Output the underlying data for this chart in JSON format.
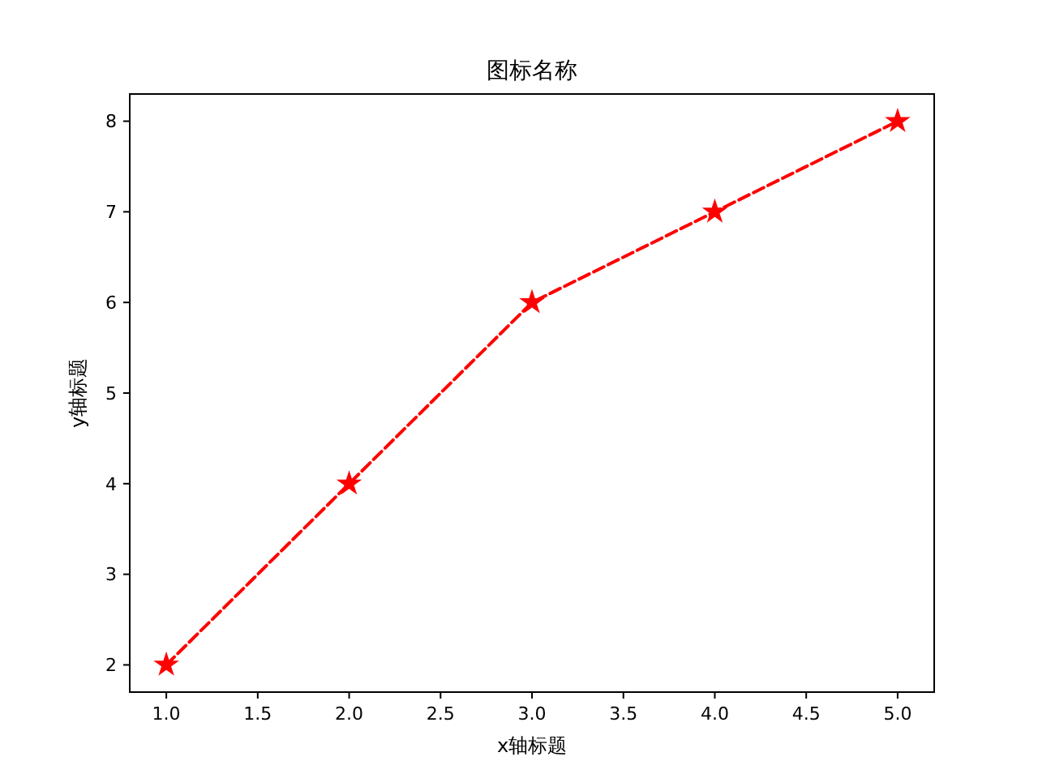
{
  "chart_data": {
    "type": "line",
    "title": "图标名称",
    "xlabel": "x轴标题",
    "ylabel": "y轴标题",
    "x": [
      1,
      2,
      3,
      4,
      5
    ],
    "series": [
      {
        "color": "#ff0000",
        "values": [
          2,
          4,
          6,
          7,
          8
        ]
      }
    ],
    "xlim": [
      0.8,
      5.2
    ],
    "xticks": [
      {
        "value": 1,
        "label": "1.0"
      },
      {
        "value": 1.5,
        "label": "1.5"
      },
      {
        "value": 2,
        "label": "2.0"
      },
      {
        "value": 2.5,
        "label": "2.5"
      },
      {
        "value": 3,
        "label": "3.0"
      },
      {
        "value": 3.5,
        "label": "3.5"
      },
      {
        "value": 4,
        "label": "4.0"
      },
      {
        "value": 4.5,
        "label": "4.5"
      },
      {
        "value": 5,
        "label": "5.0"
      }
    ],
    "ylim": [
      1.7,
      8.3
    ],
    "yticks": [
      2,
      3,
      4,
      5,
      6,
      7,
      8
    ],
    "marker": "star",
    "line_style": "dashed"
  }
}
